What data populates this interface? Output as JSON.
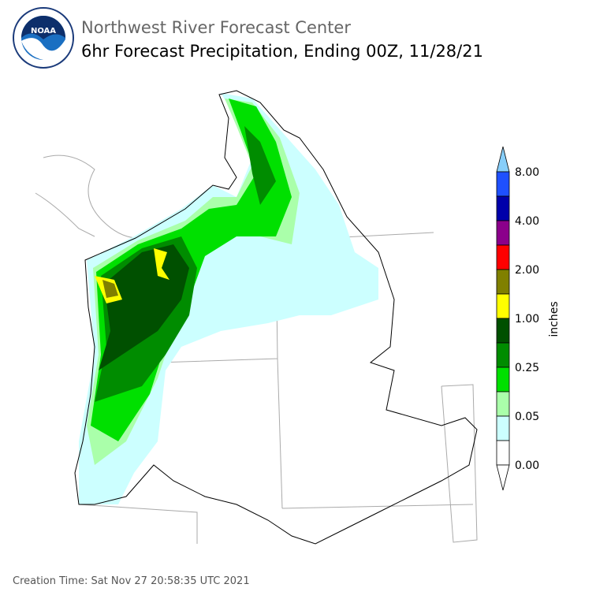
{
  "header": {
    "logo_text": "NOAA",
    "organization": "Northwest River Forecast Center",
    "product": "6hr Forecast Precipitation, Ending 00Z, 11/28/21"
  },
  "colorbar": {
    "label": "inches",
    "ticks": [
      "8.00",
      "4.00",
      "2.00",
      "1.00",
      "0.25",
      "0.05",
      "0.00"
    ]
  },
  "footer": {
    "creation_time": "Creation Time: Sat Nov 27 20:58:35 UTC 2021"
  }
}
